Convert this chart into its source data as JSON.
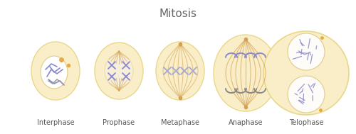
{
  "title": "Mitosis",
  "title_fontsize": 11,
  "title_color": "#666666",
  "bg_color": "#ffffff",
  "stages": [
    "Interphase",
    "Prophase",
    "Metaphase",
    "Anaphase",
    "Telophase"
  ],
  "cell_color": "#faeec8",
  "cell_edge_color": "#e8d88a",
  "nucleus_color": "#ffffff",
  "nucleus_edge_color": "#e0cc88",
  "chromosome_color": "#8888cc",
  "chromosome_color2": "#aaaacc",
  "spindle_color": "#d4a050",
  "label_fontsize": 7,
  "label_color": "#555555",
  "nucleolus_color": "#e8aa44"
}
